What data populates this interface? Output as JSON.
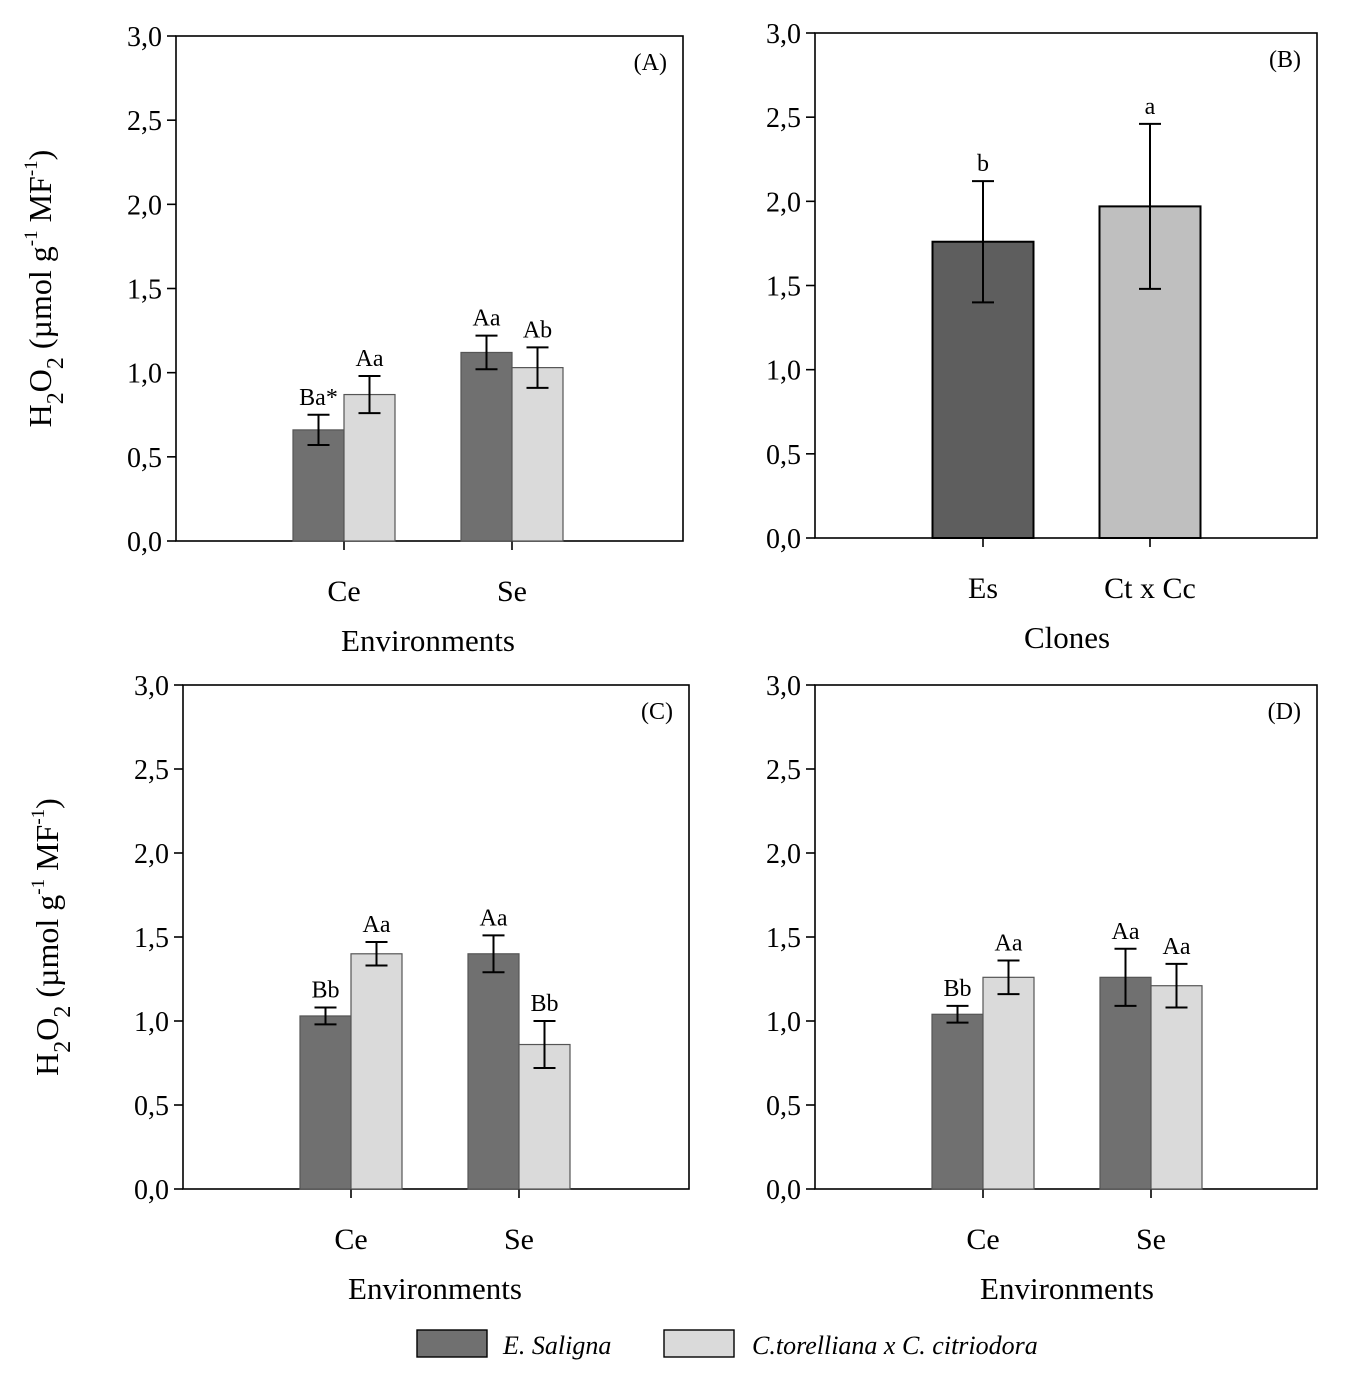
{
  "figure": {
    "colors": {
      "dark_bar": "#707070",
      "darker_bar": "#5e5e5e",
      "light_bar": "#dadada",
      "mid_bar": "#bfbfbf"
    },
    "legend": [
      {
        "label": "E. Saligna",
        "color": "#707070"
      },
      {
        "label": "C.torelliana x C. citriodora",
        "color": "#dadada"
      }
    ]
  },
  "chart_data": [
    {
      "type": "bar",
      "panel": "(A)",
      "xlabel": "Environments",
      "ylabel": "H2O2 (µmol g-1 MF-1)",
      "ylim": [
        0,
        3.0
      ],
      "yticks": [
        "0,0",
        "0,5",
        "1,0",
        "1,5",
        "2,0",
        "2,5",
        "3,0"
      ],
      "categories": [
        "Ce",
        "Se"
      ],
      "series": [
        {
          "name": "E. Saligna",
          "values": [
            0.66,
            1.12
          ],
          "errors": [
            0.09,
            0.1
          ],
          "labels": [
            "Ba*",
            "Aa"
          ]
        },
        {
          "name": "C.torelliana x C. citriodora",
          "values": [
            0.87,
            1.03
          ],
          "errors": [
            0.11,
            0.12
          ],
          "labels": [
            "Aa",
            "Ab"
          ]
        }
      ]
    },
    {
      "type": "bar",
      "panel": "(B)",
      "xlabel": "Clones",
      "ylabel": "",
      "ylim": [
        0,
        3.0
      ],
      "yticks": [
        "0,0",
        "0,5",
        "1,0",
        "1,5",
        "2,0",
        "2,5",
        "3,0"
      ],
      "categories": [
        "Es",
        "Ct x Cc"
      ],
      "series": [
        {
          "name": "",
          "values": [
            1.76,
            1.97
          ],
          "errors": [
            0.36,
            0.49
          ],
          "labels": [
            "b",
            "a"
          ]
        }
      ]
    },
    {
      "type": "bar",
      "panel": "(C)",
      "xlabel": "Environments",
      "ylabel": "H2O2 (µmol g-1 MF-1)",
      "ylim": [
        0,
        3.0
      ],
      "yticks": [
        "0,0",
        "0,5",
        "1,0",
        "1,5",
        "2,0",
        "2,5",
        "3,0"
      ],
      "categories": [
        "Ce",
        "Se"
      ],
      "series": [
        {
          "name": "E. Saligna",
          "values": [
            1.03,
            1.4
          ],
          "errors": [
            0.05,
            0.11
          ],
          "labels": [
            "Bb",
            "Aa"
          ]
        },
        {
          "name": "C.torelliana x C. citriodora",
          "values": [
            1.4,
            0.86
          ],
          "errors": [
            0.07,
            0.14
          ],
          "labels": [
            "Aa",
            "Bb"
          ]
        }
      ]
    },
    {
      "type": "bar",
      "panel": "(D)",
      "xlabel": "Environments",
      "ylabel": "",
      "ylim": [
        0,
        3.0
      ],
      "yticks": [
        "0,0",
        "0,5",
        "1,0",
        "1,5",
        "2,0",
        "2,5",
        "3,0"
      ],
      "categories": [
        "Ce",
        "Se"
      ],
      "series": [
        {
          "name": "E. Saligna",
          "values": [
            1.04,
            1.26
          ],
          "errors": [
            0.05,
            0.17
          ],
          "labels": [
            "Bb",
            "Aa"
          ]
        },
        {
          "name": "C.torelliana x C. citriodora",
          "values": [
            1.26,
            1.21
          ],
          "errors": [
            0.1,
            0.13
          ],
          "labels": [
            "Aa",
            "Aa"
          ]
        }
      ]
    }
  ]
}
